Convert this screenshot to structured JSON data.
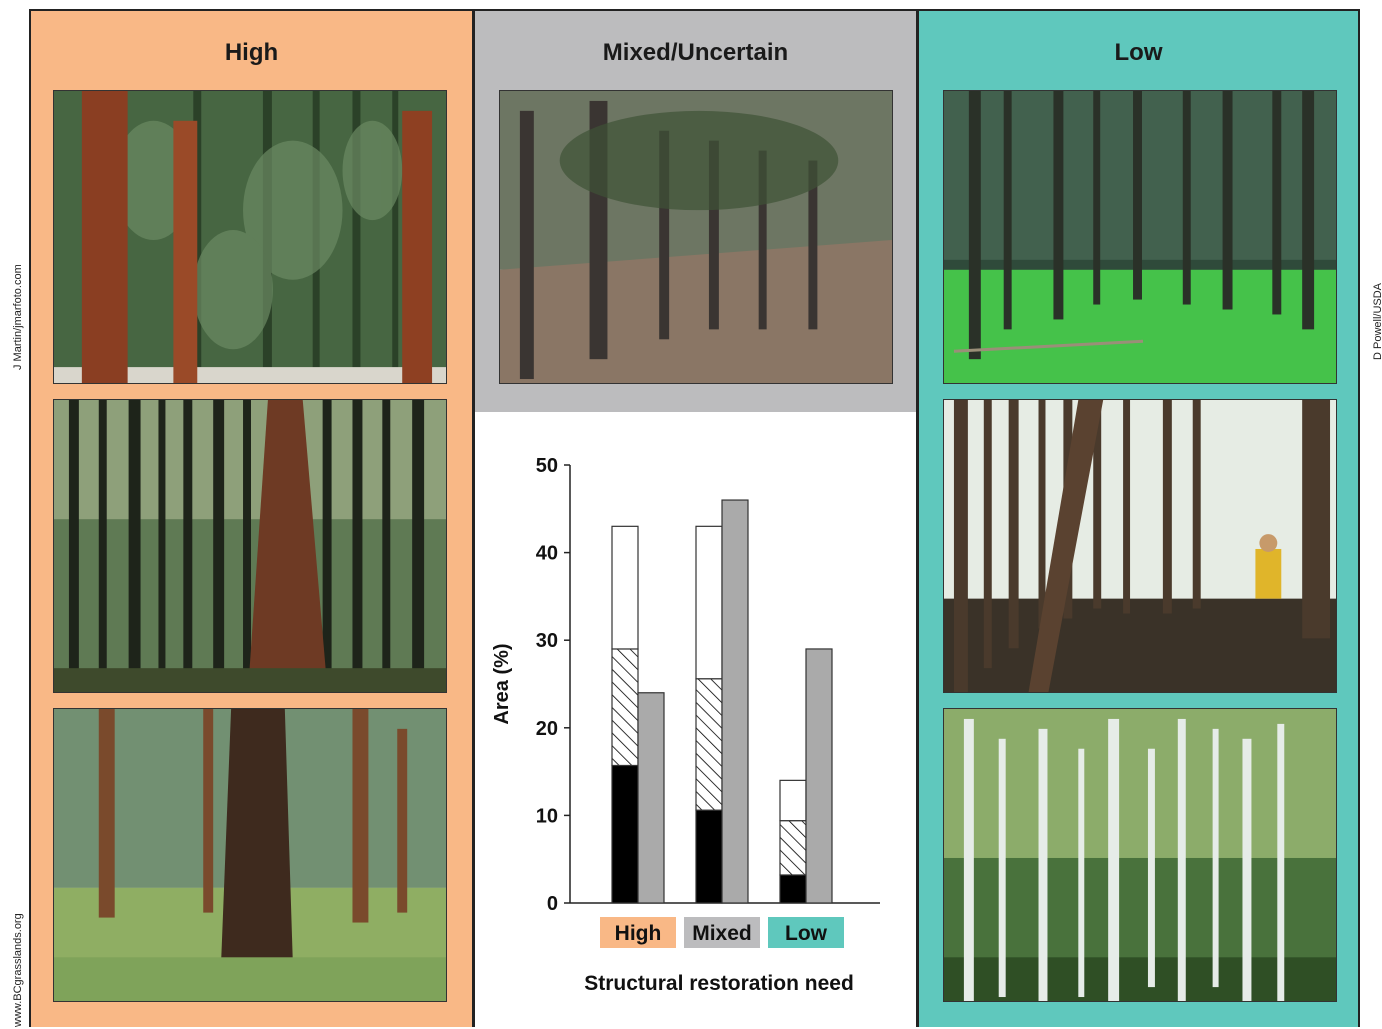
{
  "credits": {
    "left_top": "J Martin/jmarfoto.com",
    "left_bottom": "www.BCgrasslands.org",
    "right": "D Powell/USDA"
  },
  "panels": {
    "high": {
      "title": "High",
      "color": "#f9b886"
    },
    "mixed": {
      "title": "Mixed/Uncertain",
      "color": "#bcbcbe"
    },
    "low": {
      "title": "Low",
      "color": "#5fc8bd"
    }
  },
  "photos": [
    {
      "panel": "high",
      "subject": "ponderosa pine forest, tall orange trunks"
    },
    {
      "panel": "high",
      "subject": "dense dark pine forest"
    },
    {
      "panel": "high",
      "subject": "open pine forest with green grass"
    },
    {
      "panel": "mixed",
      "subject": "pine woodland on dry slope"
    },
    {
      "panel": "low",
      "subject": "forest with bright green understory"
    },
    {
      "panel": "low",
      "subject": "dense lodgepole pine stand with person"
    },
    {
      "panel": "low",
      "subject": "aspen grove"
    }
  ],
  "chart_data": {
    "type": "bar",
    "categories": [
      "High",
      "Mixed",
      "Low"
    ],
    "category_colors": [
      "#f9b886",
      "#bcbcbe",
      "#5fc8bd"
    ],
    "stacked_bar": {
      "segments": [
        {
          "fill": "black",
          "values": [
            15.7,
            10.6,
            3.2
          ]
        },
        {
          "fill": "hatched",
          "values": [
            13.3,
            15.0,
            6.2
          ]
        },
        {
          "fill": "white",
          "values": [
            14.0,
            17.4,
            4.6
          ]
        }
      ],
      "totals": [
        43,
        43,
        14
      ]
    },
    "gray_bar": {
      "fill": "#aaaaaa",
      "values": [
        24,
        46,
        29
      ]
    },
    "ylabel": "Area (%)",
    "xlabel": "Structural restoration need",
    "ylim": [
      0,
      50
    ],
    "yticks": [
      0,
      10,
      20,
      30,
      40,
      50
    ]
  }
}
